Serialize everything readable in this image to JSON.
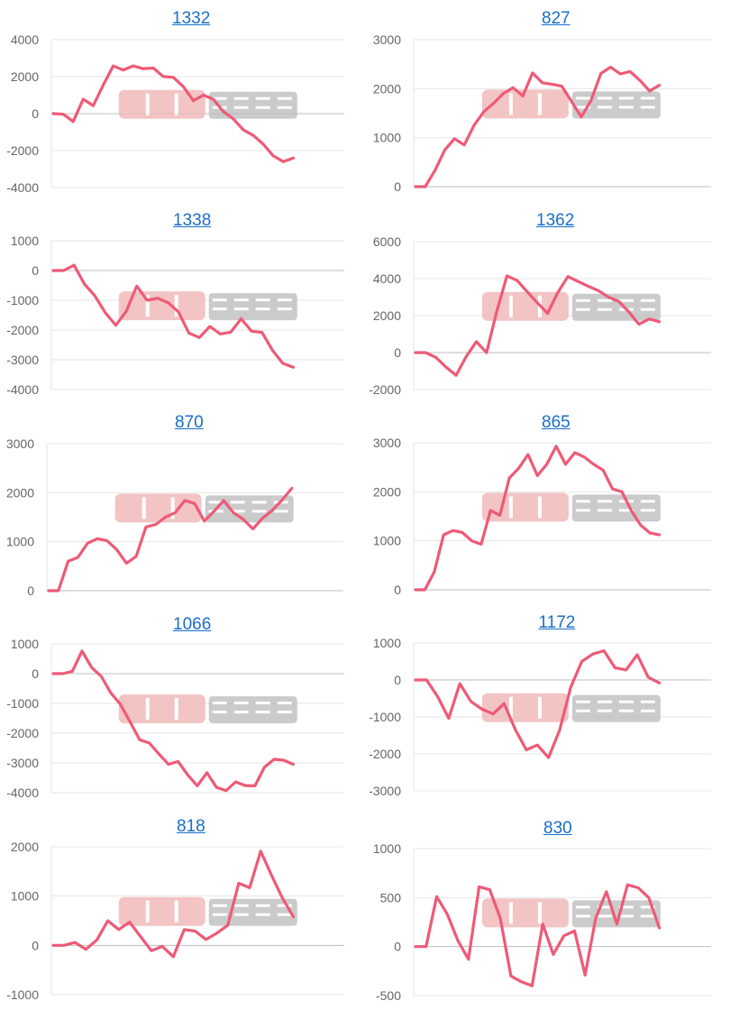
{
  "colors": {
    "line": "#ee5a77",
    "grid": "#e6e6e6",
    "axis": "#c8c8c8",
    "tick": "#666666",
    "title": "#1a6fc9"
  },
  "chart_data": [
    {
      "type": "line",
      "title": "1332",
      "ylim": [
        -4000,
        4000
      ],
      "yticks": [
        "4000",
        "2000",
        "0",
        "-2000",
        "-4000"
      ],
      "grid": true,
      "values": [
        0,
        -30,
        -430,
        780,
        430,
        1540,
        2580,
        2360,
        2580,
        2430,
        2470,
        2010,
        1960,
        1460,
        700,
        1000,
        780,
        110,
        -290,
        -880,
        -1180,
        -1660,
        -2290,
        -2600,
        -2400
      ]
    },
    {
      "type": "line",
      "title": "827",
      "ylim": [
        0,
        3000
      ],
      "yticks": [
        "3000",
        "2000",
        "1000",
        "0"
      ],
      "grid": true,
      "values": [
        0,
        0,
        330,
        750,
        980,
        850,
        1250,
        1530,
        1700,
        1900,
        2020,
        1850,
        2320,
        2120,
        2090,
        2050,
        1740,
        1420,
        1760,
        2310,
        2440,
        2300,
        2350,
        2170,
        1950,
        2070
      ]
    },
    {
      "type": "line",
      "title": "1338",
      "ylim": [
        -4000,
        1000
      ],
      "yticks": [
        "1000",
        "0",
        "-1000",
        "-2000",
        "-3000",
        "-4000"
      ],
      "grid": true,
      "values": [
        0,
        0,
        180,
        -460,
        -850,
        -1420,
        -1840,
        -1370,
        -520,
        -1000,
        -930,
        -1080,
        -1390,
        -2100,
        -2250,
        -1880,
        -2130,
        -2070,
        -1620,
        -2040,
        -2080,
        -2680,
        -3120,
        -3250
      ]
    },
    {
      "type": "line",
      "title": "1362",
      "ylim": [
        -2000,
        6000
      ],
      "yticks": [
        "6000",
        "4000",
        "2000",
        "0",
        "-2000"
      ],
      "grid": true,
      "values": [
        0,
        0,
        -260,
        -780,
        -1230,
        -200,
        590,
        0,
        2230,
        4150,
        3900,
        3290,
        2690,
        2120,
        3240,
        4110,
        3850,
        3590,
        3350,
        3000,
        2770,
        2200,
        1530,
        1820,
        1670
      ]
    },
    {
      "type": "line",
      "title": "870",
      "ylim": [
        0,
        3000
      ],
      "yticks": [
        "3000",
        "2000",
        "1000",
        "0"
      ],
      "grid": true,
      "values": [
        0,
        0,
        600,
        680,
        970,
        1060,
        1020,
        840,
        560,
        700,
        1300,
        1350,
        1500,
        1590,
        1840,
        1780,
        1420,
        1620,
        1840,
        1590,
        1460,
        1260,
        1480,
        1640,
        1850,
        2090
      ]
    },
    {
      "type": "line",
      "title": "865",
      "ylim": [
        0,
        3000
      ],
      "yticks": [
        "3000",
        "2000",
        "1000",
        "0"
      ],
      "grid": true,
      "values": [
        0,
        0,
        360,
        1120,
        1210,
        1170,
        1000,
        930,
        1620,
        1520,
        2280,
        2480,
        2760,
        2330,
        2560,
        2930,
        2560,
        2800,
        2710,
        2560,
        2440,
        2060,
        2000,
        1620,
        1320,
        1160,
        1120
      ]
    },
    {
      "type": "line",
      "title": "1066",
      "ylim": [
        -4000,
        1000
      ],
      "yticks": [
        "1000",
        "0",
        "-1000",
        "-2000",
        "-3000",
        "-4000"
      ],
      "grid": true,
      "values": [
        0,
        0,
        80,
        760,
        210,
        -90,
        -650,
        -1030,
        -1620,
        -2220,
        -2330,
        -2700,
        -3050,
        -2950,
        -3400,
        -3770,
        -3330,
        -3820,
        -3930,
        -3640,
        -3760,
        -3770,
        -3140,
        -2880,
        -2910,
        -3050
      ]
    },
    {
      "type": "line",
      "title": "1172",
      "ylim": [
        -3000,
        1000
      ],
      "yticks": [
        "1000",
        "0",
        "-1000",
        "-2000",
        "-3000"
      ],
      "grid": true,
      "values": [
        0,
        0,
        -450,
        -1040,
        -100,
        -580,
        -790,
        -920,
        -640,
        -1340,
        -1890,
        -1760,
        -2100,
        -1360,
        -200,
        500,
        700,
        790,
        330,
        270,
        680,
        70,
        -80
      ]
    },
    {
      "type": "line",
      "title": "818",
      "ylim": [
        -1000,
        2000
      ],
      "yticks": [
        "2000",
        "1000",
        "0",
        "-1000"
      ],
      "grid": true,
      "values": [
        0,
        0,
        60,
        -80,
        110,
        500,
        320,
        470,
        180,
        -110,
        -20,
        -230,
        320,
        290,
        120,
        250,
        410,
        1260,
        1170,
        1910,
        1420,
        960,
        580
      ]
    },
    {
      "type": "line",
      "title": "830",
      "ylim": [
        -500,
        1000
      ],
      "yticks": [
        "1000",
        "500",
        "0",
        "-500"
      ],
      "grid": true,
      "values": [
        0,
        0,
        510,
        330,
        60,
        -130,
        610,
        580,
        290,
        -300,
        -360,
        -400,
        230,
        -80,
        110,
        160,
        -290,
        290,
        560,
        230,
        630,
        600,
        500,
        190
      ]
    }
  ]
}
